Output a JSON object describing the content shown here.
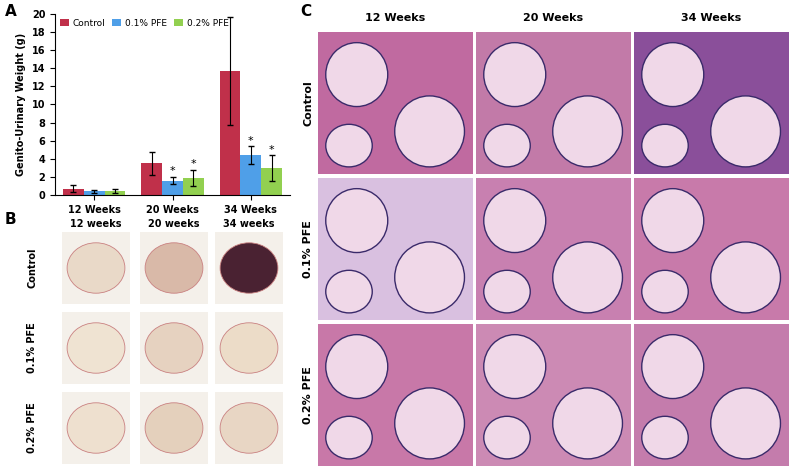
{
  "chart_data": {
    "type": "bar",
    "panel_label": "A",
    "ylabel": "Genito-Urinary Weight (g)",
    "categories": [
      "12 Weeks",
      "20 Weeks",
      "34 Weeks"
    ],
    "series": [
      {
        "name": "Control",
        "color": "#c0304a",
        "values": [
          0.7,
          3.5,
          13.7
        ],
        "errors": [
          0.4,
          1.3,
          6.0
        ]
      },
      {
        "name": "0.1% PFE",
        "color": "#4f9fe8",
        "values": [
          0.4,
          1.6,
          4.4
        ],
        "errors": [
          0.2,
          0.4,
          1.0
        ]
      },
      {
        "name": "0.2% PFE",
        "color": "#92d050",
        "values": [
          0.45,
          1.9,
          3.0
        ],
        "errors": [
          0.2,
          0.9,
          1.4
        ]
      }
    ],
    "ylim": [
      0,
      20
    ],
    "yticks": [
      0,
      2,
      4,
      6,
      8,
      10,
      12,
      14,
      16,
      18,
      20
    ],
    "grid": false,
    "legend": "upper left",
    "annotations": [
      {
        "text": "*",
        "series": "0.1% PFE",
        "category": "20 Weeks"
      },
      {
        "text": "*",
        "series": "0.2% PFE",
        "category": "20 Weeks"
      },
      {
        "text": "*",
        "series": "0.1% PFE",
        "category": "34 Weeks"
      },
      {
        "text": "*",
        "series": "0.2% PFE",
        "category": "34 Weeks"
      }
    ]
  },
  "panel_B": {
    "panel_label": "B",
    "columns": [
      "12 weeks",
      "20 weeks",
      "34 weeks"
    ],
    "rows": [
      "Control",
      "0.1% PFE",
      "0.2% PFE"
    ]
  },
  "panel_C": {
    "panel_label": "C",
    "columns": [
      "12 Weeks",
      "20 Weeks",
      "34 Weeks"
    ],
    "rows": [
      "Control",
      "0.1% PFE",
      "0.2% PFE"
    ]
  }
}
